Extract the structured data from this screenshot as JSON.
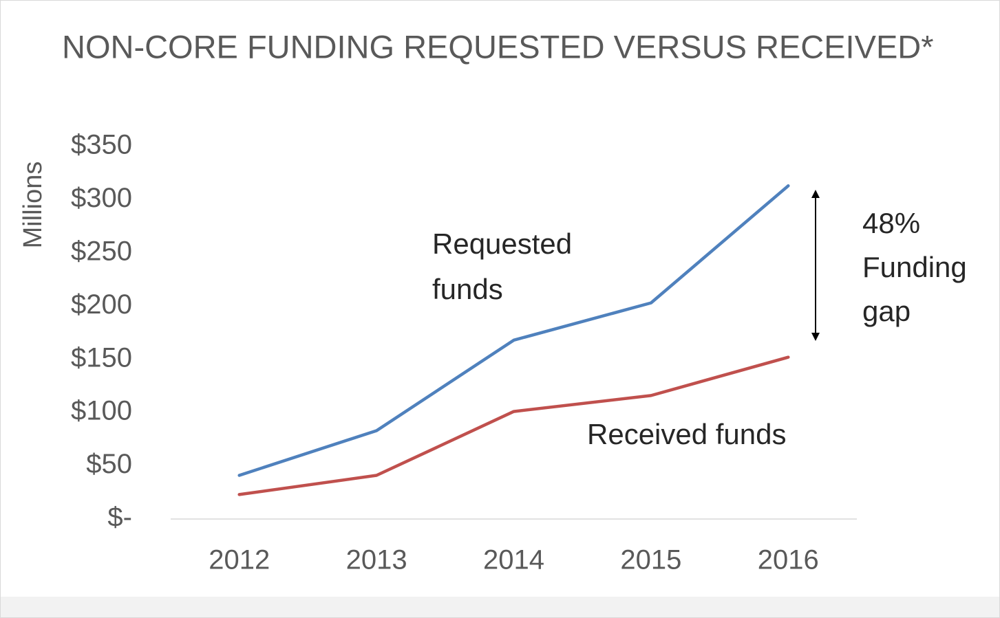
{
  "chart_data": {
    "type": "line",
    "title": "NON-CORE FUNDING REQUESTED VERSUS RECEIVED*",
    "y_label": "Millions",
    "categories": [
      "2012",
      "2013",
      "2014",
      "2015",
      "2016"
    ],
    "series": [
      {
        "name": "Requested funds",
        "color": "#4f81bd",
        "values": [
          41,
          83,
          168,
          203,
          313
        ]
      },
      {
        "name": "Received funds",
        "color": "#c0504d",
        "values": [
          23,
          41,
          101,
          116,
          152
        ]
      }
    ],
    "annotations": [
      "48% Funding gap"
    ],
    "ylim": [
      0,
      350
    ],
    "yticks": [
      {
        "value": 0,
        "label": "$-"
      },
      {
        "value": 50,
        "label": "$50"
      },
      {
        "value": 100,
        "label": "$100"
      },
      {
        "value": 150,
        "label": "$150"
      },
      {
        "value": 200,
        "label": "$200"
      },
      {
        "value": 250,
        "label": "$250"
      },
      {
        "value": 300,
        "label": "$300"
      },
      {
        "value": 350,
        "label": "$350"
      }
    ],
    "grid": false
  }
}
